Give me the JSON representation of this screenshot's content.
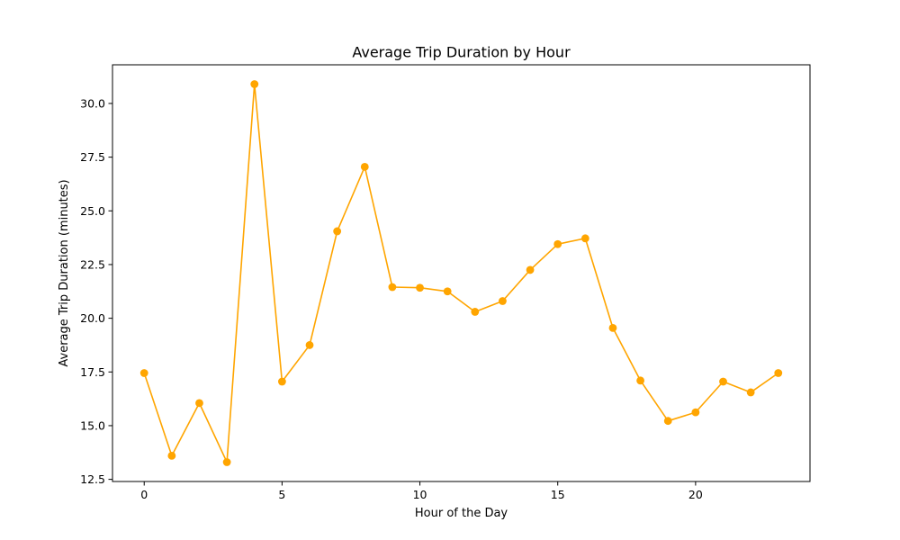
{
  "chart_data": {
    "type": "line",
    "title": "Average Trip Duration by Hour",
    "xlabel": "Hour of the Day",
    "ylabel": "Average Trip Duration (minutes)",
    "xlim": [
      -1.15,
      24.15
    ],
    "ylim": [
      12.4,
      31.8
    ],
    "xticks": [
      0,
      5,
      10,
      15,
      20
    ],
    "yticks": [
      12.5,
      15.0,
      17.5,
      20.0,
      22.5,
      25.0,
      27.5,
      30.0
    ],
    "ytick_labels": [
      "12.5",
      "15.0",
      "17.5",
      "20.0",
      "22.5",
      "25.0",
      "27.5",
      "30.0"
    ],
    "grid": false,
    "color": "#FFA500",
    "x": [
      0,
      1,
      2,
      3,
      4,
      5,
      6,
      7,
      8,
      9,
      10,
      11,
      12,
      13,
      14,
      15,
      16,
      17,
      18,
      19,
      20,
      21,
      22,
      23
    ],
    "y": [
      17.45,
      13.6,
      16.05,
      13.3,
      30.9,
      17.05,
      18.75,
      24.05,
      27.05,
      21.45,
      21.42,
      21.25,
      20.3,
      20.8,
      22.25,
      23.45,
      23.72,
      19.55,
      17.1,
      15.22,
      15.62,
      17.05,
      16.55,
      17.45
    ]
  }
}
